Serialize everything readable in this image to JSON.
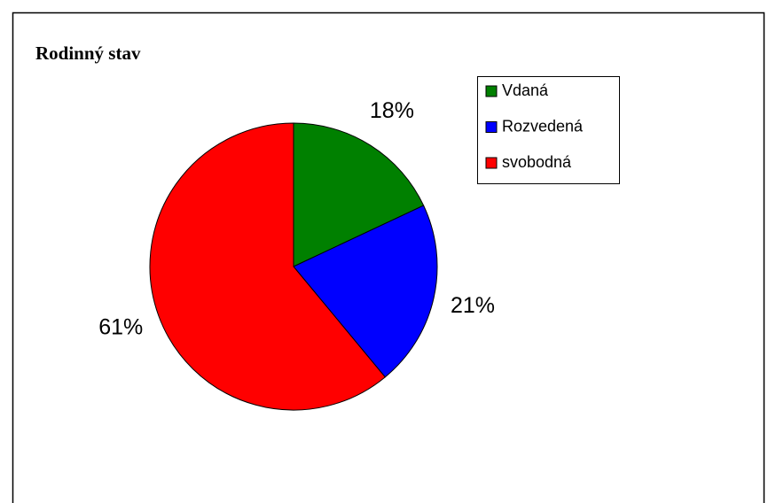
{
  "chart_data": {
    "type": "pie",
    "title": "Rodinný stav",
    "categories": [
      "Vdaná",
      "Rozvedená",
      "svobodná"
    ],
    "values": [
      18,
      21,
      61
    ],
    "value_labels": [
      "18%",
      "21%",
      "61%"
    ],
    "colors": [
      "#008000",
      "#0000ff",
      "#ff0000"
    ],
    "legend": "top-right"
  }
}
